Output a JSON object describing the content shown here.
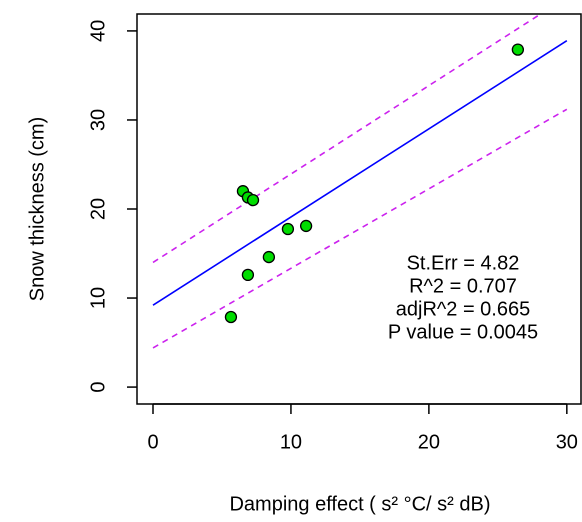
{
  "chart_data": {
    "type": "scatter",
    "xlabel": "Damping effect ( s² °C/ s² dB)",
    "ylabel": "Snow thickness (cm)",
    "xlim": [
      -1.16,
      31.1
    ],
    "ylim": [
      -1.9,
      41.9
    ],
    "xticks": [
      0,
      10,
      20,
      30
    ],
    "yticks": [
      0,
      10,
      20,
      30,
      40
    ],
    "series": [
      {
        "style": "points",
        "color": "#00dd00",
        "x": [
          5.65,
          6.52,
          6.88,
          7.25,
          6.88,
          8.4,
          9.78,
          11.1,
          26.45
        ],
        "values": [
          7.87,
          22.0,
          21.3,
          21.0,
          12.6,
          14.6,
          17.75,
          18.1,
          37.9
        ]
      },
      {
        "style": "line",
        "color": "#0000ff",
        "x": [
          0,
          30
        ],
        "values": [
          9.2,
          38.9
        ]
      },
      {
        "style": "dashed",
        "color": "#cc22ee",
        "x": [
          0,
          28.1
        ],
        "values": [
          14.0,
          41.9
        ]
      },
      {
        "style": "dashed",
        "color": "#cc22ee",
        "x": [
          0,
          30
        ],
        "values": [
          4.4,
          31.2
        ]
      }
    ],
    "annotations": [
      "St.Err = 4.82",
      "R^2 = 0.707",
      "adjR^2 = 0.665",
      "P value = 0.0045"
    ]
  }
}
